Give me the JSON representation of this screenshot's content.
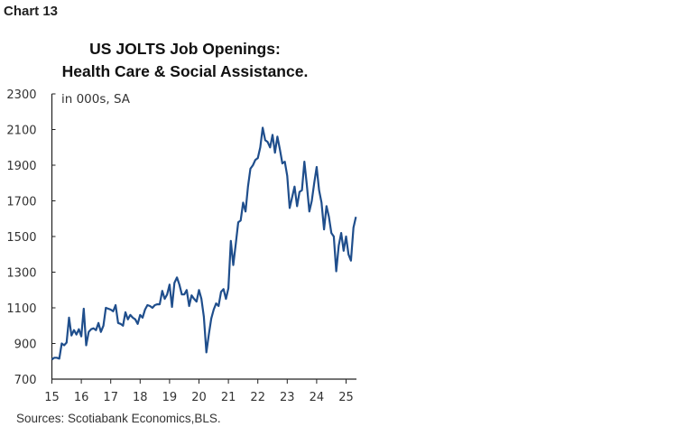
{
  "header": {
    "chart_number": "Chart 13"
  },
  "chart_data": {
    "type": "line",
    "title": "US JOLTS Job Openings:\nHealth Care & Social Assistance.",
    "title_lines": [
      "US JOLTS Job Openings:",
      "Health Care & Social Assistance."
    ],
    "unit_label": "in 000s, SA",
    "source": "Sources: Scotiabank Economics,BLS.",
    "ylim": [
      700,
      2300
    ],
    "yticks": [
      700,
      900,
      1100,
      1300,
      1500,
      1700,
      1900,
      2100,
      2300
    ],
    "xticks": [
      "15",
      "16",
      "17",
      "18",
      "19",
      "20",
      "21",
      "22",
      "23",
      "24",
      "25"
    ],
    "x_start": "2015-01",
    "frequency": "monthly",
    "color": "#1f4e8c",
    "grid": false,
    "values": [
      810,
      820,
      820,
      815,
      900,
      890,
      905,
      1045,
      945,
      975,
      950,
      980,
      940,
      1095,
      890,
      965,
      980,
      985,
      975,
      1015,
      965,
      1000,
      1100,
      1095,
      1090,
      1080,
      1115,
      1015,
      1010,
      1000,
      1075,
      1035,
      1060,
      1045,
      1035,
      1010,
      1060,
      1045,
      1090,
      1115,
      1110,
      1100,
      1115,
      1120,
      1120,
      1195,
      1150,
      1175,
      1230,
      1105,
      1240,
      1270,
      1230,
      1175,
      1175,
      1200,
      1110,
      1170,
      1150,
      1135,
      1200,
      1150,
      1050,
      850,
      950,
      1040,
      1090,
      1125,
      1110,
      1190,
      1205,
      1150,
      1210,
      1475,
      1340,
      1460,
      1580,
      1590,
      1690,
      1640,
      1780,
      1880,
      1900,
      1930,
      1940,
      2000,
      2110,
      2040,
      2030,
      2000,
      2070,
      1970,
      2060,
      1990,
      1910,
      1920,
      1840,
      1660,
      1720,
      1780,
      1670,
      1750,
      1760,
      1920,
      1790,
      1640,
      1700,
      1800,
      1890,
      1760,
      1690,
      1540,
      1670,
      1610,
      1520,
      1500,
      1305,
      1450,
      1520,
      1420,
      1500,
      1400,
      1365,
      1550,
      1610
    ]
  }
}
